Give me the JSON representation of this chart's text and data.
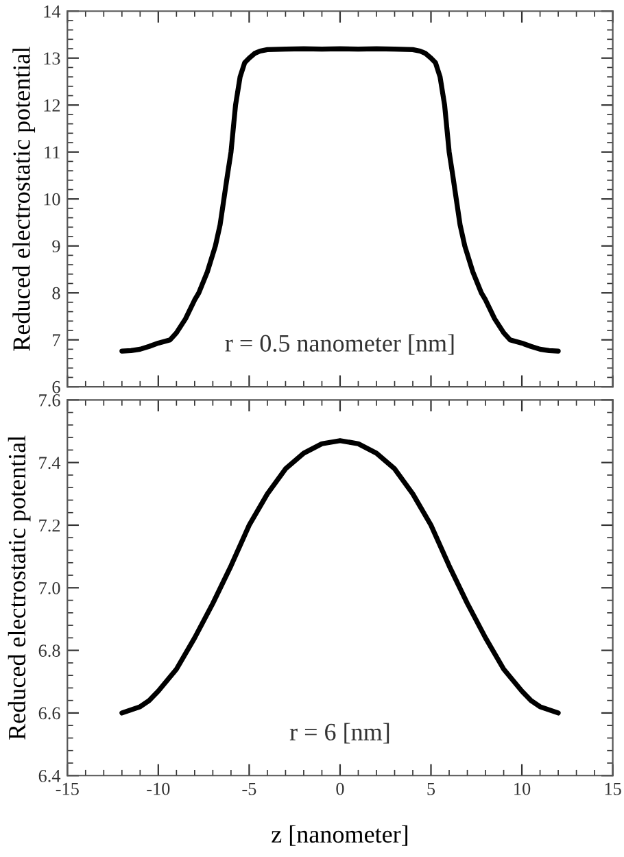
{
  "chart_data": [
    {
      "type": "line",
      "ylabel": "Reduced electrostatic potential",
      "annotations": [
        "r = 0.5 nanometer [nm]"
      ],
      "tick_labels": "y",
      "xlim": [
        -15,
        15
      ],
      "ylim": [
        6,
        14
      ],
      "yticks": [
        6,
        7,
        8,
        9,
        10,
        11,
        12,
        13,
        14
      ],
      "series": [
        {
          "color": "#000000",
          "x": [
            -12,
            -11.5,
            -11,
            -10.5,
            -10,
            -9.35,
            -9,
            -8.5,
            -8,
            -7.77,
            -7.3,
            -6.86,
            -6.6,
            -6.39,
            -6.2,
            -6.0,
            -5.75,
            -5.5,
            -5.25,
            -5.0,
            -4.7,
            -4.4,
            -4,
            -3,
            -2,
            -1,
            0,
            1,
            2,
            3,
            4,
            4.4,
            4.7,
            5.0,
            5.25,
            5.5,
            5.75,
            6.0,
            6.2,
            6.39,
            6.6,
            6.86,
            7.3,
            7.77,
            8,
            8.5,
            9,
            9.35,
            10,
            10.5,
            11,
            11.5,
            12
          ],
          "values": [
            6.76,
            6.77,
            6.8,
            6.86,
            6.93,
            7.0,
            7.15,
            7.45,
            7.85,
            8.0,
            8.45,
            9.0,
            9.45,
            10.0,
            10.5,
            11.0,
            12.0,
            12.6,
            12.9,
            13.0,
            13.1,
            13.15,
            13.18,
            13.19,
            13.2,
            13.19,
            13.2,
            13.19,
            13.2,
            13.19,
            13.18,
            13.15,
            13.1,
            13.0,
            12.9,
            12.6,
            12.0,
            11.0,
            10.5,
            10.0,
            9.45,
            9.0,
            8.45,
            8.0,
            7.85,
            7.45,
            7.15,
            7.0,
            6.93,
            6.86,
            6.8,
            6.77,
            6.76
          ]
        }
      ]
    },
    {
      "type": "line",
      "xlabel": "z [nanometer]",
      "ylabel": "Reduced electrostatic potential",
      "annotations": [
        "r = 6 [nm]"
      ],
      "xlim": [
        -15,
        15
      ],
      "xticks": [
        -15,
        -10,
        -5,
        0,
        5,
        10,
        15
      ],
      "ylim": [
        6.4,
        7.6
      ],
      "yticks": [
        {
          "value": 6.4,
          "label": "6.4"
        },
        {
          "value": 6.6,
          "label": "6.6"
        },
        {
          "value": 6.8,
          "label": "6.8"
        },
        {
          "value": 7.0,
          "label": "7.0"
        },
        {
          "value": 7.2,
          "label": "7.2"
        },
        {
          "value": 7.4,
          "label": "7.4"
        },
        {
          "value": 7.6,
          "label": "7.6"
        }
      ],
      "series": [
        {
          "color": "#000000",
          "x": [
            -12,
            -11.5,
            -11,
            -10.5,
            -10,
            -9,
            -8,
            -7,
            -6,
            -5,
            -4,
            -3,
            -2,
            -1,
            0,
            1,
            2,
            3,
            4,
            5,
            6,
            7,
            8,
            9,
            10,
            10.5,
            11,
            11.5,
            12
          ],
          "values": [
            6.6,
            6.61,
            6.62,
            6.64,
            6.67,
            6.74,
            6.84,
            6.95,
            7.07,
            7.2,
            7.3,
            7.38,
            7.43,
            7.46,
            7.47,
            7.46,
            7.43,
            7.38,
            7.3,
            7.2,
            7.07,
            6.95,
            6.84,
            6.74,
            6.67,
            6.64,
            6.62,
            6.61,
            6.6
          ]
        }
      ]
    }
  ]
}
